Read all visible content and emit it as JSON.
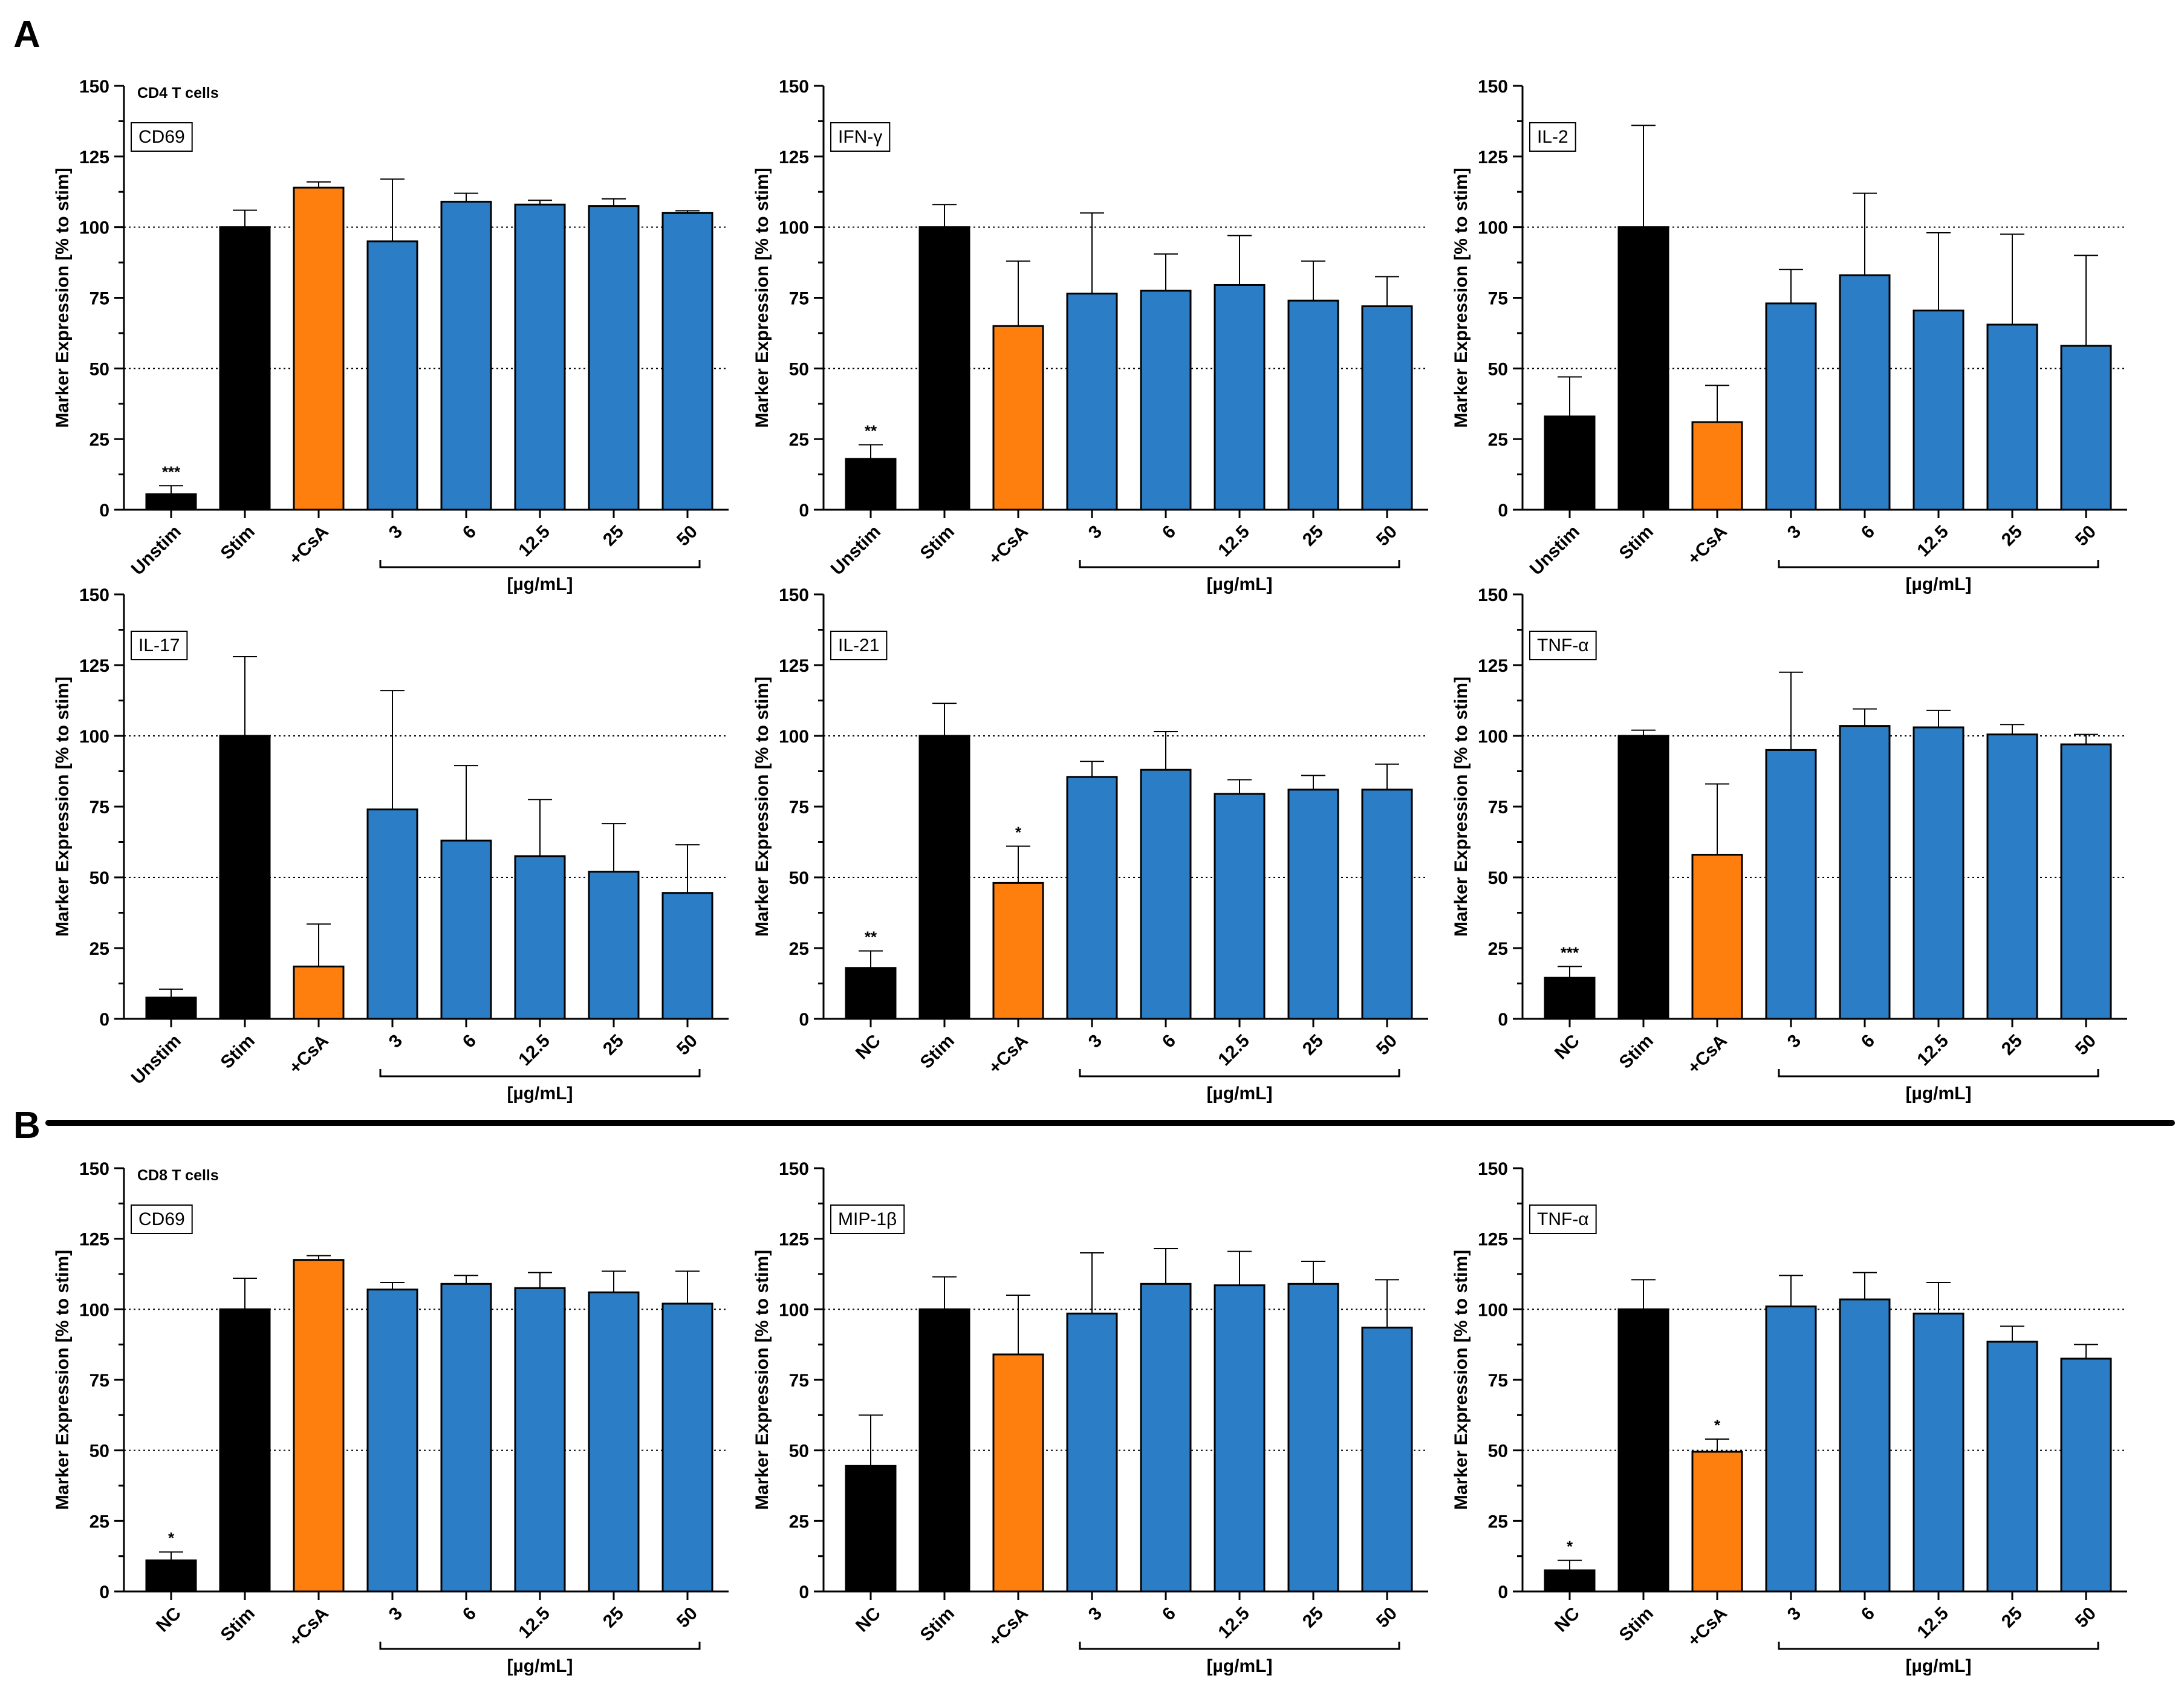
{
  "panels": {
    "A": "A",
    "B": "B"
  },
  "colors": {
    "black": "#000000",
    "orange": "#FF7F0E",
    "blue": "#2B7DC5"
  },
  "chart_data": [
    {
      "type": "bar",
      "panel": "A",
      "cell_type": "CD4 T cells",
      "marker": "CD69",
      "categories": [
        "Unstim",
        "Stim",
        "+CsA",
        "3",
        "6",
        "12.5",
        "25",
        "50"
      ],
      "values": [
        5.5,
        100,
        114,
        95,
        109,
        108,
        107.5,
        105
      ],
      "errors": [
        3,
        6,
        2,
        22,
        3,
        1.5,
        2.5,
        0.8
      ],
      "significance": [
        "***",
        "",
        "",
        "",
        "",
        "",
        "",
        ""
      ],
      "colors": [
        "black",
        "black",
        "orange",
        "blue",
        "blue",
        "blue",
        "blue",
        "blue"
      ],
      "ylabel": "Marker Expression [% to stim]",
      "ylim": [
        0,
        150
      ],
      "yticks": [
        "0",
        "25",
        "50",
        "75",
        "100",
        "125",
        "150"
      ],
      "unit": "[µg/mL]"
    },
    {
      "type": "bar",
      "panel": "A",
      "cell_type": "",
      "marker": "IFN-γ",
      "categories": [
        "Unstim",
        "Stim",
        "+CsA",
        "3",
        "6",
        "12.5",
        "25",
        "50"
      ],
      "values": [
        18,
        100,
        65,
        76.5,
        77.5,
        79.5,
        74,
        72
      ],
      "errors": [
        5,
        8,
        23,
        28.5,
        13,
        17.5,
        14,
        10.5
      ],
      "significance": [
        "**",
        "",
        "",
        "",
        "",
        "",
        "",
        ""
      ],
      "colors": [
        "black",
        "black",
        "orange",
        "blue",
        "blue",
        "blue",
        "blue",
        "blue"
      ],
      "ylabel": "Marker Expression [% to stim]",
      "ylim": [
        0,
        150
      ],
      "yticks": [
        "0",
        "25",
        "50",
        "75",
        "100",
        "125",
        "150"
      ],
      "unit": "[µg/mL]"
    },
    {
      "type": "bar",
      "panel": "A",
      "cell_type": "",
      "marker": "IL-2",
      "categories": [
        "Unstim",
        "Stim",
        "+CsA",
        "3",
        "6",
        "12.5",
        "25",
        "50"
      ],
      "values": [
        33,
        100,
        31,
        73,
        83,
        70.5,
        65.5,
        58
      ],
      "errors": [
        14,
        36,
        13,
        12,
        29,
        27.5,
        32,
        32
      ],
      "significance": [
        "",
        "",
        "",
        "",
        "",
        "",
        "",
        ""
      ],
      "colors": [
        "black",
        "black",
        "orange",
        "blue",
        "blue",
        "blue",
        "blue",
        "blue"
      ],
      "ylabel": "Marker Expression [% to stim]",
      "ylim": [
        0,
        150
      ],
      "yticks": [
        "0",
        "25",
        "50",
        "75",
        "100",
        "125",
        "150"
      ],
      "unit": "[µg/mL]"
    },
    {
      "type": "bar",
      "panel": "A",
      "cell_type": "",
      "marker": "IL-17",
      "categories": [
        "Unstim",
        "Stim",
        "+CsA",
        "3",
        "6",
        "12.5",
        "25",
        "50"
      ],
      "values": [
        7.5,
        100,
        18.5,
        74,
        63,
        57.5,
        52,
        44.5
      ],
      "errors": [
        3,
        28,
        15,
        42,
        26.5,
        20,
        17,
        17
      ],
      "significance": [
        "",
        "",
        "",
        "",
        "",
        "",
        "",
        ""
      ],
      "colors": [
        "black",
        "black",
        "orange",
        "blue",
        "blue",
        "blue",
        "blue",
        "blue"
      ],
      "ylabel": "Marker Expression [% to stim]",
      "ylim": [
        0,
        150
      ],
      "yticks": [
        "0",
        "25",
        "50",
        "75",
        "100",
        "125",
        "150"
      ],
      "unit": "[µg/mL]"
    },
    {
      "type": "bar",
      "panel": "A",
      "cell_type": "",
      "marker": "IL-21",
      "categories": [
        "NC",
        "Stim",
        "+CsA",
        "3",
        "6",
        "12.5",
        "25",
        "50"
      ],
      "values": [
        18,
        100,
        48,
        85.5,
        88,
        79.5,
        81,
        81
      ],
      "errors": [
        6,
        11.5,
        13,
        5.5,
        13.5,
        5,
        5,
        9
      ],
      "significance": [
        "**",
        "",
        "*",
        "",
        "",
        "",
        "",
        ""
      ],
      "colors": [
        "black",
        "black",
        "orange",
        "blue",
        "blue",
        "blue",
        "blue",
        "blue"
      ],
      "ylabel": "Marker Expression [% to stim]",
      "ylim": [
        0,
        150
      ],
      "yticks": [
        "0",
        "25",
        "50",
        "75",
        "100",
        "125",
        "150"
      ],
      "unit": "[µg/mL]"
    },
    {
      "type": "bar",
      "panel": "A",
      "cell_type": "",
      "marker": "TNF-α",
      "categories": [
        "NC",
        "Stim",
        "+CsA",
        "3",
        "6",
        "12.5",
        "25",
        "50"
      ],
      "values": [
        14.5,
        100,
        58,
        95,
        103.5,
        103,
        100.5,
        97
      ],
      "errors": [
        4,
        2,
        25,
        27.5,
        6,
        6,
        3.5,
        3.5
      ],
      "significance": [
        "***",
        "",
        "",
        "",
        "",
        "",
        "",
        ""
      ],
      "colors": [
        "black",
        "black",
        "orange",
        "blue",
        "blue",
        "blue",
        "blue",
        "blue"
      ],
      "ylabel": "Marker Expression [% to stim]",
      "ylim": [
        0,
        150
      ],
      "yticks": [
        "0",
        "25",
        "50",
        "75",
        "100",
        "125",
        "150"
      ],
      "unit": "[µg/mL]"
    },
    {
      "type": "bar",
      "panel": "B",
      "cell_type": "CD8 T cells",
      "marker": "CD69",
      "categories": [
        "NC",
        "Stim",
        "+CsA",
        "3",
        "6",
        "12.5",
        "25",
        "50"
      ],
      "values": [
        11,
        100,
        117.5,
        107,
        109,
        107.5,
        106,
        102
      ],
      "errors": [
        3,
        11,
        1.5,
        2.5,
        3,
        5.5,
        7.5,
        11.5
      ],
      "significance": [
        "*",
        "",
        "",
        "",
        "",
        "",
        "",
        ""
      ],
      "colors": [
        "black",
        "black",
        "orange",
        "blue",
        "blue",
        "blue",
        "blue",
        "blue"
      ],
      "ylabel": "Marker Expression [% to stim]",
      "ylim": [
        0,
        150
      ],
      "yticks": [
        "0",
        "25",
        "50",
        "75",
        "100",
        "125",
        "150"
      ],
      "unit": "[µg/mL]"
    },
    {
      "type": "bar",
      "panel": "B",
      "cell_type": "",
      "marker": "MIP-1β",
      "categories": [
        "NC",
        "Stim",
        "+CsA",
        "3",
        "6",
        "12.5",
        "25",
        "50"
      ],
      "values": [
        44.5,
        100,
        84,
        98.5,
        109,
        108.5,
        109,
        93.5
      ],
      "errors": [
        18,
        11.5,
        21,
        21.5,
        12.5,
        12,
        8,
        17
      ],
      "significance": [
        "",
        "",
        "",
        "",
        "",
        "",
        "",
        ""
      ],
      "colors": [
        "black",
        "black",
        "orange",
        "blue",
        "blue",
        "blue",
        "blue",
        "blue"
      ],
      "ylabel": "Marker Expression [% to stim]",
      "ylim": [
        0,
        150
      ],
      "yticks": [
        "0",
        "25",
        "50",
        "75",
        "100",
        "125",
        "150"
      ],
      "unit": "[µg/mL]"
    },
    {
      "type": "bar",
      "panel": "B",
      "cell_type": "",
      "marker": "TNF-α",
      "categories": [
        "NC",
        "Stim",
        "+CsA",
        "3",
        "6",
        "12.5",
        "25",
        "50"
      ],
      "values": [
        7.5,
        100,
        49.5,
        101,
        103.5,
        98.5,
        88.5,
        82.5
      ],
      "errors": [
        3.5,
        10.5,
        4.5,
        11,
        9.5,
        11,
        5.5,
        5
      ],
      "significance": [
        "*",
        "",
        "*",
        "",
        "",
        "",
        "",
        ""
      ],
      "colors": [
        "black",
        "black",
        "orange",
        "blue",
        "blue",
        "blue",
        "blue",
        "blue"
      ],
      "ylabel": "Marker Expression [% to stim]",
      "ylim": [
        0,
        150
      ],
      "yticks": [
        "0",
        "25",
        "50",
        "75",
        "100",
        "125",
        "150"
      ],
      "unit": "[µg/mL]"
    }
  ]
}
